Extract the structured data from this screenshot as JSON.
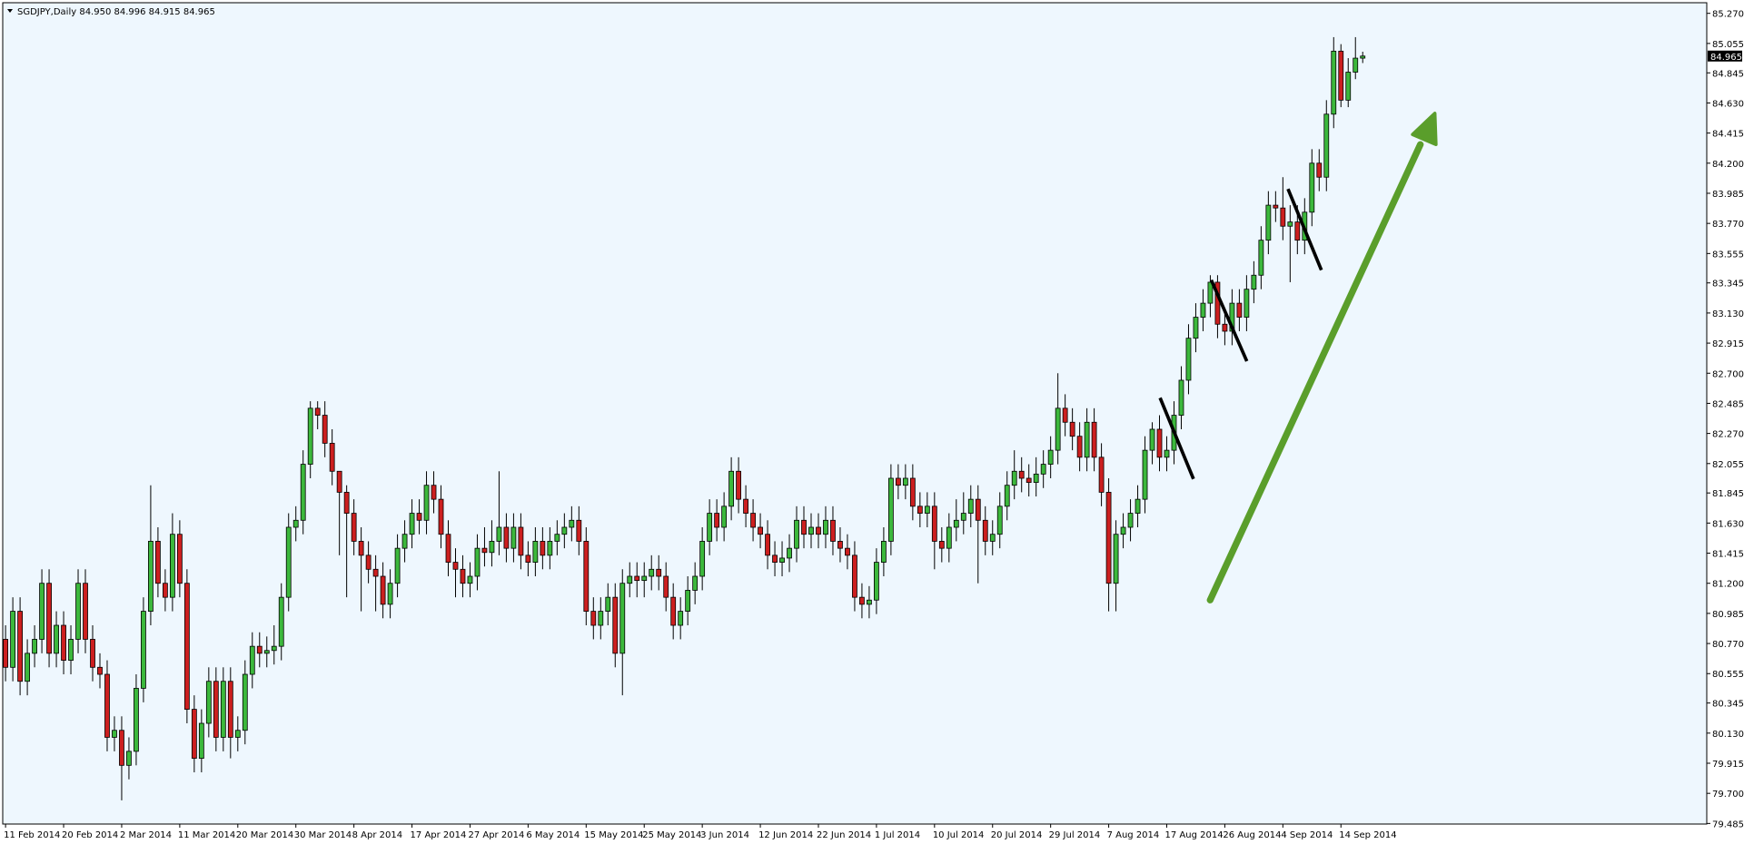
{
  "chart_data": {
    "type": "candlestick",
    "title": "SGDJPY,Daily  84.950 84.996 84.915 84.965",
    "ylim": [
      79.485,
      85.27
    ],
    "yticks": [
      {
        "value": 85.27,
        "label": "85.270"
      },
      {
        "value": 85.055,
        "label": "85.055"
      },
      {
        "value": 84.845,
        "label": "84.845"
      },
      {
        "value": 84.63,
        "label": "84.630"
      },
      {
        "value": 84.415,
        "label": "84.415"
      },
      {
        "value": 84.2,
        "label": "84.200"
      },
      {
        "value": 83.985,
        "label": "83.985"
      },
      {
        "value": 83.77,
        "label": "83.770"
      },
      {
        "value": 83.555,
        "label": "83.555"
      },
      {
        "value": 83.345,
        "label": "83.345"
      },
      {
        "value": 83.13,
        "label": "83.130"
      },
      {
        "value": 82.915,
        "label": "82.915"
      },
      {
        "value": 82.7,
        "label": "82.700"
      },
      {
        "value": 82.485,
        "label": "82.485"
      },
      {
        "value": 82.27,
        "label": "82.270"
      },
      {
        "value": 82.055,
        "label": "82.055"
      },
      {
        "value": 81.845,
        "label": "81.845"
      },
      {
        "value": 81.63,
        "label": "81.630"
      },
      {
        "value": 81.415,
        "label": "81.415"
      },
      {
        "value": 81.2,
        "label": "81.200"
      },
      {
        "value": 80.985,
        "label": "80.985"
      },
      {
        "value": 80.77,
        "label": "80.770"
      },
      {
        "value": 80.555,
        "label": "80.555"
      },
      {
        "value": 80.345,
        "label": "80.345"
      },
      {
        "value": 80.13,
        "label": "80.130"
      },
      {
        "value": 79.915,
        "label": "79.915"
      },
      {
        "value": 79.7,
        "label": "79.700"
      },
      {
        "value": 79.485,
        "label": "79.485"
      }
    ],
    "price_label": {
      "value": 84.965,
      "label": "84.965"
    },
    "up_color": "#3cb83c",
    "down_color": "#cc1f1f",
    "grid": false,
    "categories": [
      "11 Feb 2014",
      null,
      null,
      null,
      null,
      null,
      null,
      null,
      "20 Feb 2014",
      null,
      null,
      null,
      null,
      null,
      null,
      null,
      "2 Mar 2014",
      null,
      null,
      null,
      null,
      null,
      null,
      null,
      "11 Mar 2014",
      null,
      null,
      null,
      null,
      null,
      null,
      null,
      "20 Mar 2014",
      null,
      null,
      null,
      null,
      null,
      null,
      null,
      "30 Mar 2014",
      null,
      null,
      null,
      null,
      null,
      null,
      null,
      "8 Apr 2014",
      null,
      null,
      null,
      null,
      null,
      null,
      null,
      "17 Apr 2014",
      null,
      null,
      null,
      null,
      null,
      null,
      null,
      "27 Apr 2014",
      null,
      null,
      null,
      null,
      null,
      null,
      null,
      "6 May 2014",
      null,
      null,
      null,
      null,
      null,
      null,
      null,
      "15 May 2014",
      null,
      null,
      null,
      null,
      null,
      null,
      null,
      "25 May 2014",
      null,
      null,
      null,
      null,
      null,
      null,
      null,
      "3 Jun 2014",
      null,
      null,
      null,
      null,
      null,
      null,
      null,
      "12 Jun 2014",
      null,
      null,
      null,
      null,
      null,
      null,
      null,
      "22 Jun 2014",
      null,
      null,
      null,
      null,
      null,
      null,
      null,
      "1 Jul 2014",
      null,
      null,
      null,
      null,
      null,
      null,
      null,
      "10 Jul 2014",
      null,
      null,
      null,
      null,
      null,
      null,
      null,
      "20 Jul 2014",
      null,
      null,
      null,
      null,
      null,
      null,
      null,
      "29 Jul 2014",
      null,
      null,
      null,
      null,
      null,
      null,
      null,
      "7 Aug 2014",
      null,
      null,
      null,
      null,
      null,
      null,
      null,
      "17 Aug 2014",
      null,
      null,
      null,
      null,
      null,
      null,
      null,
      "26 Aug 2014",
      null,
      null,
      null,
      null,
      null,
      null,
      null,
      "4 Sep 2014",
      null,
      null,
      null,
      null,
      null,
      null,
      null,
      "14 Sep 2014",
      null,
      null,
      null
    ],
    "ohlc": [
      [
        80.8,
        80.9,
        80.5,
        80.6
      ],
      [
        80.6,
        81.1,
        80.5,
        81.0
      ],
      [
        81.0,
        81.1,
        80.4,
        80.5
      ],
      [
        80.5,
        80.8,
        80.4,
        80.7
      ],
      [
        80.7,
        80.9,
        80.6,
        80.8
      ],
      [
        80.8,
        81.3,
        80.7,
        81.2
      ],
      [
        81.2,
        81.3,
        80.6,
        80.7
      ],
      [
        80.7,
        81.0,
        80.6,
        80.9
      ],
      [
        80.9,
        81.0,
        80.55,
        80.65
      ],
      [
        80.65,
        80.9,
        80.55,
        80.8
      ],
      [
        80.8,
        81.3,
        80.7,
        81.2
      ],
      [
        81.2,
        81.3,
        80.7,
        80.8
      ],
      [
        80.8,
        80.9,
        80.5,
        80.6
      ],
      [
        80.6,
        80.7,
        80.45,
        80.55
      ],
      [
        80.55,
        80.65,
        80.0,
        80.1
      ],
      [
        80.1,
        80.25,
        80.0,
        80.15
      ],
      [
        80.15,
        80.25,
        79.65,
        79.9
      ],
      [
        79.9,
        80.1,
        79.8,
        80.0
      ],
      [
        80.0,
        80.55,
        79.9,
        80.45
      ],
      [
        80.45,
        81.1,
        80.35,
        81.0
      ],
      [
        81.0,
        81.9,
        80.9,
        81.5
      ],
      [
        81.5,
        81.6,
        81.1,
        81.2
      ],
      [
        81.2,
        81.3,
        81.0,
        81.1
      ],
      [
        81.1,
        81.7,
        81.0,
        81.55
      ],
      [
        81.55,
        81.65,
        81.1,
        81.2
      ],
      [
        81.2,
        81.3,
        80.2,
        80.3
      ],
      [
        80.3,
        80.4,
        79.85,
        79.95
      ],
      [
        79.95,
        80.3,
        79.85,
        80.2
      ],
      [
        80.2,
        80.6,
        80.1,
        80.5
      ],
      [
        80.5,
        80.6,
        80.0,
        80.1
      ],
      [
        80.1,
        80.6,
        80.0,
        80.5
      ],
      [
        80.5,
        80.6,
        79.95,
        80.1
      ],
      [
        80.1,
        80.25,
        80.0,
        80.15
      ],
      [
        80.15,
        80.65,
        80.05,
        80.55
      ],
      [
        80.55,
        80.85,
        80.45,
        80.75
      ],
      [
        80.75,
        80.85,
        80.6,
        80.7
      ],
      [
        80.7,
        80.82,
        80.6,
        80.72
      ],
      [
        80.72,
        80.9,
        80.62,
        80.75
      ],
      [
        80.75,
        81.2,
        80.65,
        81.1
      ],
      [
        81.1,
        81.7,
        81.0,
        81.6
      ],
      [
        81.6,
        81.75,
        81.5,
        81.65
      ],
      [
        81.65,
        82.15,
        81.55,
        82.05
      ],
      [
        82.05,
        82.5,
        81.95,
        82.45
      ],
      [
        82.45,
        82.5,
        82.3,
        82.4
      ],
      [
        82.4,
        82.5,
        82.1,
        82.2
      ],
      [
        82.2,
        82.3,
        81.9,
        82.0
      ],
      [
        82.0,
        82.0,
        81.4,
        81.85
      ],
      [
        81.85,
        81.9,
        81.1,
        81.7
      ],
      [
        81.7,
        81.8,
        81.4,
        81.5
      ],
      [
        81.5,
        81.6,
        81.0,
        81.4
      ],
      [
        81.4,
        81.5,
        81.2,
        81.3
      ],
      [
        81.3,
        81.4,
        81.0,
        81.25
      ],
      [
        81.25,
        81.35,
        80.95,
        81.05
      ],
      [
        81.05,
        81.3,
        80.95,
        81.2
      ],
      [
        81.2,
        81.55,
        81.1,
        81.45
      ],
      [
        81.45,
        81.65,
        81.35,
        81.55
      ],
      [
        81.55,
        81.8,
        81.45,
        81.7
      ],
      [
        81.7,
        81.8,
        81.55,
        81.65
      ],
      [
        81.65,
        82.0,
        81.55,
        81.9
      ],
      [
        81.9,
        82.0,
        81.7,
        81.8
      ],
      [
        81.8,
        81.9,
        81.45,
        81.55
      ],
      [
        81.55,
        81.65,
        81.25,
        81.35
      ],
      [
        81.35,
        81.45,
        81.1,
        81.3
      ],
      [
        81.3,
        81.4,
        81.1,
        81.2
      ],
      [
        81.2,
        81.35,
        81.1,
        81.25
      ],
      [
        81.25,
        81.55,
        81.15,
        81.45
      ],
      [
        81.45,
        81.6,
        81.32,
        81.42
      ],
      [
        81.42,
        81.65,
        81.32,
        81.5
      ],
      [
        81.5,
        82.0,
        81.4,
        81.6
      ],
      [
        81.6,
        81.7,
        81.35,
        81.45
      ],
      [
        81.45,
        81.7,
        81.35,
        81.6
      ],
      [
        81.6,
        81.7,
        81.3,
        81.4
      ],
      [
        81.4,
        81.5,
        81.25,
        81.35
      ],
      [
        81.35,
        81.6,
        81.25,
        81.5
      ],
      [
        81.5,
        81.6,
        81.3,
        81.4
      ],
      [
        81.4,
        81.6,
        81.3,
        81.5
      ],
      [
        81.5,
        81.65,
        81.4,
        81.55
      ],
      [
        81.55,
        81.7,
        81.45,
        81.6
      ],
      [
        81.6,
        81.75,
        81.5,
        81.65
      ],
      [
        81.65,
        81.75,
        81.4,
        81.5
      ],
      [
        81.5,
        81.6,
        80.9,
        81.0
      ],
      [
        81.0,
        81.1,
        80.8,
        80.9
      ],
      [
        80.9,
        81.1,
        80.8,
        81.0
      ],
      [
        81.0,
        81.2,
        80.9,
        81.1
      ],
      [
        81.1,
        81.2,
        80.6,
        80.7
      ],
      [
        80.7,
        81.3,
        80.4,
        81.2
      ],
      [
        81.2,
        81.35,
        81.1,
        81.25
      ],
      [
        81.25,
        81.35,
        81.1,
        81.22
      ],
      [
        81.22,
        81.35,
        81.1,
        81.25
      ],
      [
        81.25,
        81.4,
        81.15,
        81.3
      ],
      [
        81.3,
        81.4,
        81.15,
        81.25
      ],
      [
        81.25,
        81.35,
        81.0,
        81.1
      ],
      [
        81.1,
        81.2,
        80.8,
        80.9
      ],
      [
        80.9,
        81.1,
        80.8,
        81.0
      ],
      [
        81.0,
        81.25,
        80.9,
        81.15
      ],
      [
        81.15,
        81.35,
        81.05,
        81.25
      ],
      [
        81.25,
        81.6,
        81.15,
        81.5
      ],
      [
        81.5,
        81.8,
        81.4,
        81.7
      ],
      [
        81.7,
        81.8,
        81.5,
        81.6
      ],
      [
        81.6,
        81.85,
        81.5,
        81.75
      ],
      [
        81.75,
        82.1,
        81.65,
        82.0
      ],
      [
        82.0,
        82.1,
        81.7,
        81.8
      ],
      [
        81.8,
        81.9,
        81.6,
        81.7
      ],
      [
        81.7,
        81.8,
        81.5,
        81.6
      ],
      [
        81.6,
        81.7,
        81.45,
        81.55
      ],
      [
        81.55,
        81.65,
        81.3,
        81.4
      ],
      [
        81.4,
        81.5,
        81.25,
        81.35
      ],
      [
        81.35,
        81.5,
        81.25,
        81.38
      ],
      [
        81.38,
        81.55,
        81.28,
        81.45
      ],
      [
        81.45,
        81.75,
        81.35,
        81.65
      ],
      [
        81.65,
        81.75,
        81.45,
        81.55
      ],
      [
        81.55,
        81.7,
        81.45,
        81.6
      ],
      [
        81.6,
        81.7,
        81.45,
        81.55
      ],
      [
        81.55,
        81.75,
        81.45,
        81.65
      ],
      [
        81.65,
        81.75,
        81.4,
        81.5
      ],
      [
        81.5,
        81.6,
        81.35,
        81.45
      ],
      [
        81.45,
        81.55,
        81.3,
        81.4
      ],
      [
        81.4,
        81.5,
        81.0,
        81.1
      ],
      [
        81.1,
        81.2,
        80.95,
        81.05
      ],
      [
        81.05,
        81.18,
        80.95,
        81.08
      ],
      [
        81.08,
        81.45,
        80.98,
        81.35
      ],
      [
        81.35,
        81.6,
        81.25,
        81.5
      ],
      [
        81.5,
        82.05,
        81.4,
        81.95
      ],
      [
        81.95,
        82.05,
        81.8,
        81.9
      ],
      [
        81.9,
        82.05,
        81.8,
        81.95
      ],
      [
        81.95,
        82.05,
        81.65,
        81.75
      ],
      [
        81.75,
        81.85,
        81.6,
        81.7
      ],
      [
        81.7,
        81.85,
        81.6,
        81.75
      ],
      [
        81.75,
        81.85,
        81.3,
        81.5
      ],
      [
        81.5,
        81.6,
        81.35,
        81.45
      ],
      [
        81.45,
        81.7,
        81.35,
        81.6
      ],
      [
        81.6,
        81.8,
        81.5,
        81.65
      ],
      [
        81.65,
        81.85,
        81.55,
        81.7
      ],
      [
        81.7,
        81.9,
        81.6,
        81.8
      ],
      [
        81.8,
        81.9,
        81.2,
        81.65
      ],
      [
        81.65,
        81.75,
        81.4,
        81.5
      ],
      [
        81.5,
        81.65,
        81.4,
        81.55
      ],
      [
        81.55,
        81.85,
        81.45,
        81.75
      ],
      [
        81.75,
        82.0,
        81.65,
        81.9
      ],
      [
        81.9,
        82.15,
        81.8,
        82.0
      ],
      [
        82.0,
        82.1,
        81.85,
        81.95
      ],
      [
        81.95,
        82.05,
        81.82,
        81.92
      ],
      [
        81.92,
        82.1,
        81.82,
        81.98
      ],
      [
        81.98,
        82.15,
        81.88,
        82.05
      ],
      [
        82.05,
        82.25,
        81.95,
        82.15
      ],
      [
        82.15,
        82.7,
        82.05,
        82.45
      ],
      [
        82.45,
        82.55,
        82.25,
        82.35
      ],
      [
        82.35,
        82.45,
        82.15,
        82.25
      ],
      [
        82.25,
        82.35,
        82.0,
        82.1
      ],
      [
        82.1,
        82.45,
        82.0,
        82.35
      ],
      [
        82.35,
        82.45,
        82.0,
        82.1
      ],
      [
        82.1,
        82.2,
        81.75,
        81.85
      ],
      [
        81.85,
        81.95,
        81.0,
        81.2
      ],
      [
        81.2,
        81.65,
        81.0,
        81.55
      ],
      [
        81.55,
        81.7,
        81.45,
        81.6
      ],
      [
        81.6,
        81.8,
        81.5,
        81.7
      ],
      [
        81.7,
        81.9,
        81.6,
        81.8
      ],
      [
        81.8,
        82.25,
        81.7,
        82.15
      ],
      [
        82.15,
        82.35,
        82.05,
        82.3
      ],
      [
        82.3,
        82.4,
        82.0,
        82.1
      ],
      [
        82.1,
        82.25,
        82.0,
        82.15
      ],
      [
        82.15,
        82.5,
        82.05,
        82.4
      ],
      [
        82.4,
        82.75,
        82.3,
        82.65
      ],
      [
        82.65,
        83.05,
        82.55,
        82.95
      ],
      [
        82.95,
        83.2,
        82.85,
        83.1
      ],
      [
        83.1,
        83.3,
        83.0,
        83.2
      ],
      [
        83.2,
        83.4,
        83.1,
        83.35
      ],
      [
        83.35,
        83.4,
        82.95,
        83.05
      ],
      [
        83.05,
        83.15,
        82.9,
        83.0
      ],
      [
        83.0,
        83.3,
        82.9,
        83.2
      ],
      [
        83.2,
        83.3,
        83.0,
        83.1
      ],
      [
        83.1,
        83.4,
        83.0,
        83.3
      ],
      [
        83.3,
        83.5,
        83.2,
        83.4
      ],
      [
        83.4,
        83.75,
        83.3,
        83.65
      ],
      [
        83.65,
        84.0,
        83.55,
        83.9
      ],
      [
        83.9,
        84.0,
        83.78,
        83.88
      ],
      [
        83.88,
        84.1,
        83.65,
        83.75
      ],
      [
        83.75,
        83.9,
        83.35,
        83.78
      ],
      [
        83.78,
        83.9,
        83.55,
        83.65
      ],
      [
        83.65,
        83.95,
        83.55,
        83.85
      ],
      [
        83.85,
        84.3,
        83.75,
        84.2
      ],
      [
        84.2,
        84.3,
        84.0,
        84.1
      ],
      [
        84.1,
        84.65,
        84.0,
        84.55
      ],
      [
        84.55,
        85.1,
        84.45,
        85.0
      ],
      [
        85.0,
        85.05,
        84.6,
        84.65
      ],
      [
        84.65,
        84.95,
        84.6,
        84.85
      ],
      [
        84.85,
        85.1,
        84.8,
        84.95
      ],
      [
        84.95,
        84.996,
        84.915,
        84.965
      ]
    ]
  }
}
